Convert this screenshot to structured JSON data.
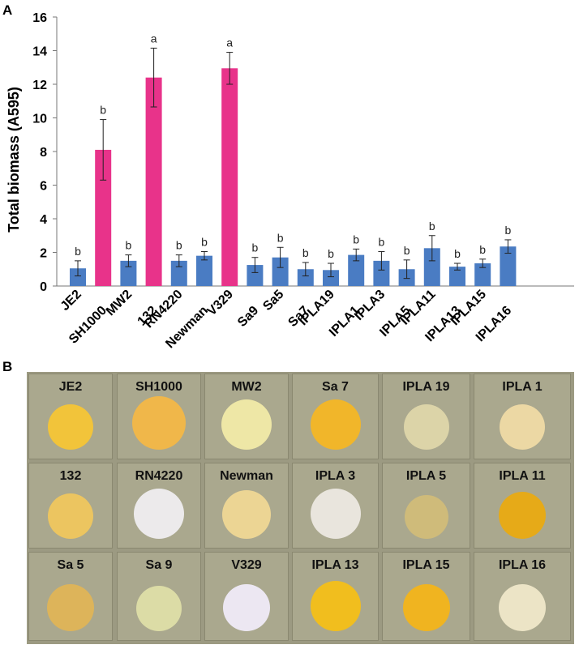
{
  "panel_a_label": "A",
  "panel_b_label": "B",
  "colors": {
    "pink": "#e8338a",
    "blue": "#4a7cc3",
    "plate": "#9c9a82",
    "well": "#aaa88e"
  },
  "chart_data": {
    "type": "bar",
    "title": "",
    "xlabel": "",
    "ylabel": "Total biomass (A595)",
    "ylim": [
      0,
      16
    ],
    "yticks": [
      0,
      2,
      4,
      6,
      8,
      10,
      12,
      14,
      16
    ],
    "categories": [
      "JE2",
      "SH1000",
      "MW2",
      "132",
      "RN4220",
      "Newman",
      "V329",
      "Sa9",
      "Sa5",
      "Sa7",
      "IPLA19",
      "IPLA1",
      "IPLA3",
      "IPLA5",
      "IPLA11",
      "IPLA13",
      "IPLA15",
      "IPLA16"
    ],
    "values": [
      1.05,
      8.1,
      1.5,
      12.4,
      1.5,
      1.8,
      12.95,
      1.25,
      1.7,
      1.0,
      0.95,
      1.85,
      1.5,
      1.0,
      2.25,
      1.15,
      1.35,
      2.35
    ],
    "errors": [
      0.45,
      1.8,
      0.35,
      1.75,
      0.35,
      0.25,
      0.95,
      0.45,
      0.6,
      0.4,
      0.4,
      0.35,
      0.55,
      0.55,
      0.75,
      0.2,
      0.25,
      0.4
    ],
    "significance": [
      "b",
      "b",
      "b",
      "a",
      "b",
      "b",
      "a",
      "b",
      "b",
      "b",
      "b",
      "b",
      "b",
      "b",
      "b",
      "b",
      "b",
      "b"
    ],
    "highlighted": [
      false,
      true,
      false,
      true,
      false,
      false,
      true,
      false,
      false,
      false,
      false,
      false,
      false,
      false,
      false,
      false,
      false,
      false
    ]
  },
  "plate": {
    "rows": [
      [
        {
          "label": "JE2",
          "color": "#f2c43a"
        },
        {
          "label": "SH1000",
          "color": "#f0b74a"
        },
        {
          "label": "MW2",
          "color": "#eee7a6"
        },
        {
          "label": "Sa 7",
          "color": "#f1b62a"
        },
        {
          "label": "IPLA 19",
          "color": "#dcd4a8"
        },
        {
          "label": "IPLA 1",
          "color": "#ecd8a4"
        }
      ],
      [
        {
          "label": "132",
          "color": "#ecc560"
        },
        {
          "label": "RN4220",
          "color": "#eceaeb"
        },
        {
          "label": "Newman",
          "color": "#ecd594"
        },
        {
          "label": "IPLA 3",
          "color": "#e9e5dd"
        },
        {
          "label": "IPLA 5",
          "color": "#cfbb7a"
        },
        {
          "label": "IPLA 11",
          "color": "#e6aa18"
        }
      ],
      [
        {
          "label": "Sa 5",
          "color": "#ddb45a"
        },
        {
          "label": "Sa 9",
          "color": "#dcdca6"
        },
        {
          "label": "V329",
          "color": "#ece7f2"
        },
        {
          "label": "IPLA 13",
          "color": "#f1be1e"
        },
        {
          "label": "IPLA 15",
          "color": "#f0b420"
        },
        {
          "label": "IPLA 16",
          "color": "#ece4c6"
        }
      ]
    ]
  }
}
